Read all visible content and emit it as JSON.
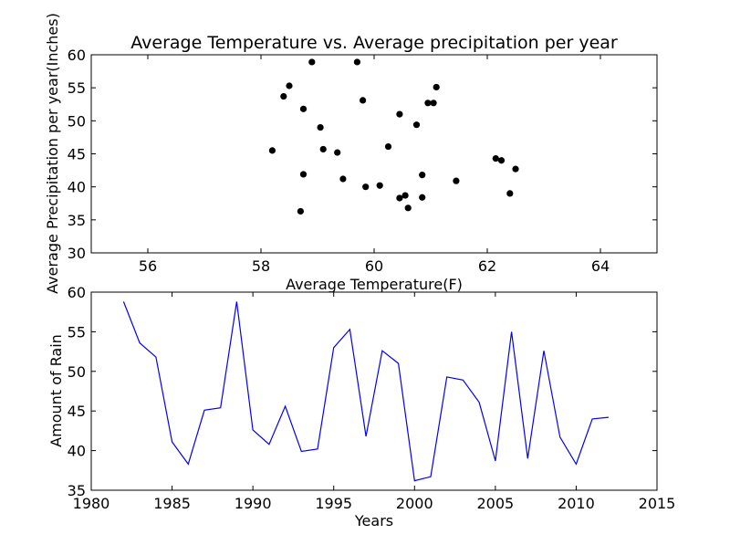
{
  "chart_data": [
    {
      "type": "scatter",
      "title": "Average Temperature vs. Average precipitation per year",
      "xlabel": "Average Temperature(F)",
      "ylabel": "Average Precipitation per year(Inches)",
      "xlim": [
        55,
        65
      ],
      "ylim": [
        30,
        60
      ],
      "xticks": [
        "56",
        "58",
        "60",
        "62",
        "64"
      ],
      "yticks": [
        "30",
        "35",
        "40",
        "45",
        "50",
        "55",
        "60"
      ],
      "marker_color": "#000000",
      "grid": false,
      "x": [
        58.2,
        58.4,
        58.5,
        58.7,
        58.75,
        58.75,
        58.9,
        59.05,
        59.1,
        59.35,
        59.45,
        59.7,
        59.8,
        59.85,
        60.1,
        60.25,
        60.45,
        60.45,
        60.55,
        60.6,
        60.75,
        60.85,
        60.85,
        60.95,
        61.05,
        61.1,
        61.45,
        62.15,
        62.25,
        62.4,
        62.5
      ],
      "y": [
        45.5,
        53.7,
        55.3,
        36.3,
        51.8,
        41.9,
        58.9,
        49.0,
        45.7,
        45.2,
        41.2,
        58.9,
        53.1,
        40.0,
        40.2,
        46.1,
        51.0,
        38.3,
        38.7,
        36.8,
        49.4,
        41.8,
        38.4,
        52.7,
        52.7,
        55.1,
        40.9,
        44.3,
        44.0,
        39.0,
        42.7
      ]
    },
    {
      "type": "line",
      "xlabel": "Years",
      "ylabel": "Amount of Rain",
      "xlim": [
        1980,
        2015
      ],
      "ylim": [
        35,
        60
      ],
      "xticks": [
        "1980",
        "1985",
        "1990",
        "1995",
        "2000",
        "2005",
        "2010",
        "2015"
      ],
      "yticks": [
        "35",
        "40",
        "45",
        "50",
        "55",
        "60"
      ],
      "line_color": "#0000ff",
      "grid": false,
      "x": [
        1982,
        1983,
        1984,
        1985,
        1986,
        1987,
        1988,
        1989,
        1990,
        1991,
        1992,
        1993,
        1994,
        1995,
        1996,
        1997,
        1998,
        1999,
        2000,
        2001,
        2002,
        2003,
        2004,
        2005,
        2006,
        2007,
        2008,
        2009,
        2010,
        2011,
        2012
      ],
      "y": [
        58.8,
        53.6,
        51.8,
        41.1,
        38.3,
        45.1,
        45.4,
        58.8,
        42.6,
        40.8,
        45.6,
        39.9,
        40.2,
        53.0,
        55.3,
        41.8,
        52.6,
        51.0,
        36.2,
        36.7,
        49.3,
        48.9,
        46.1,
        38.7,
        55.0,
        39.0,
        52.6,
        41.7,
        38.3,
        44.0,
        44.2
      ]
    }
  ]
}
